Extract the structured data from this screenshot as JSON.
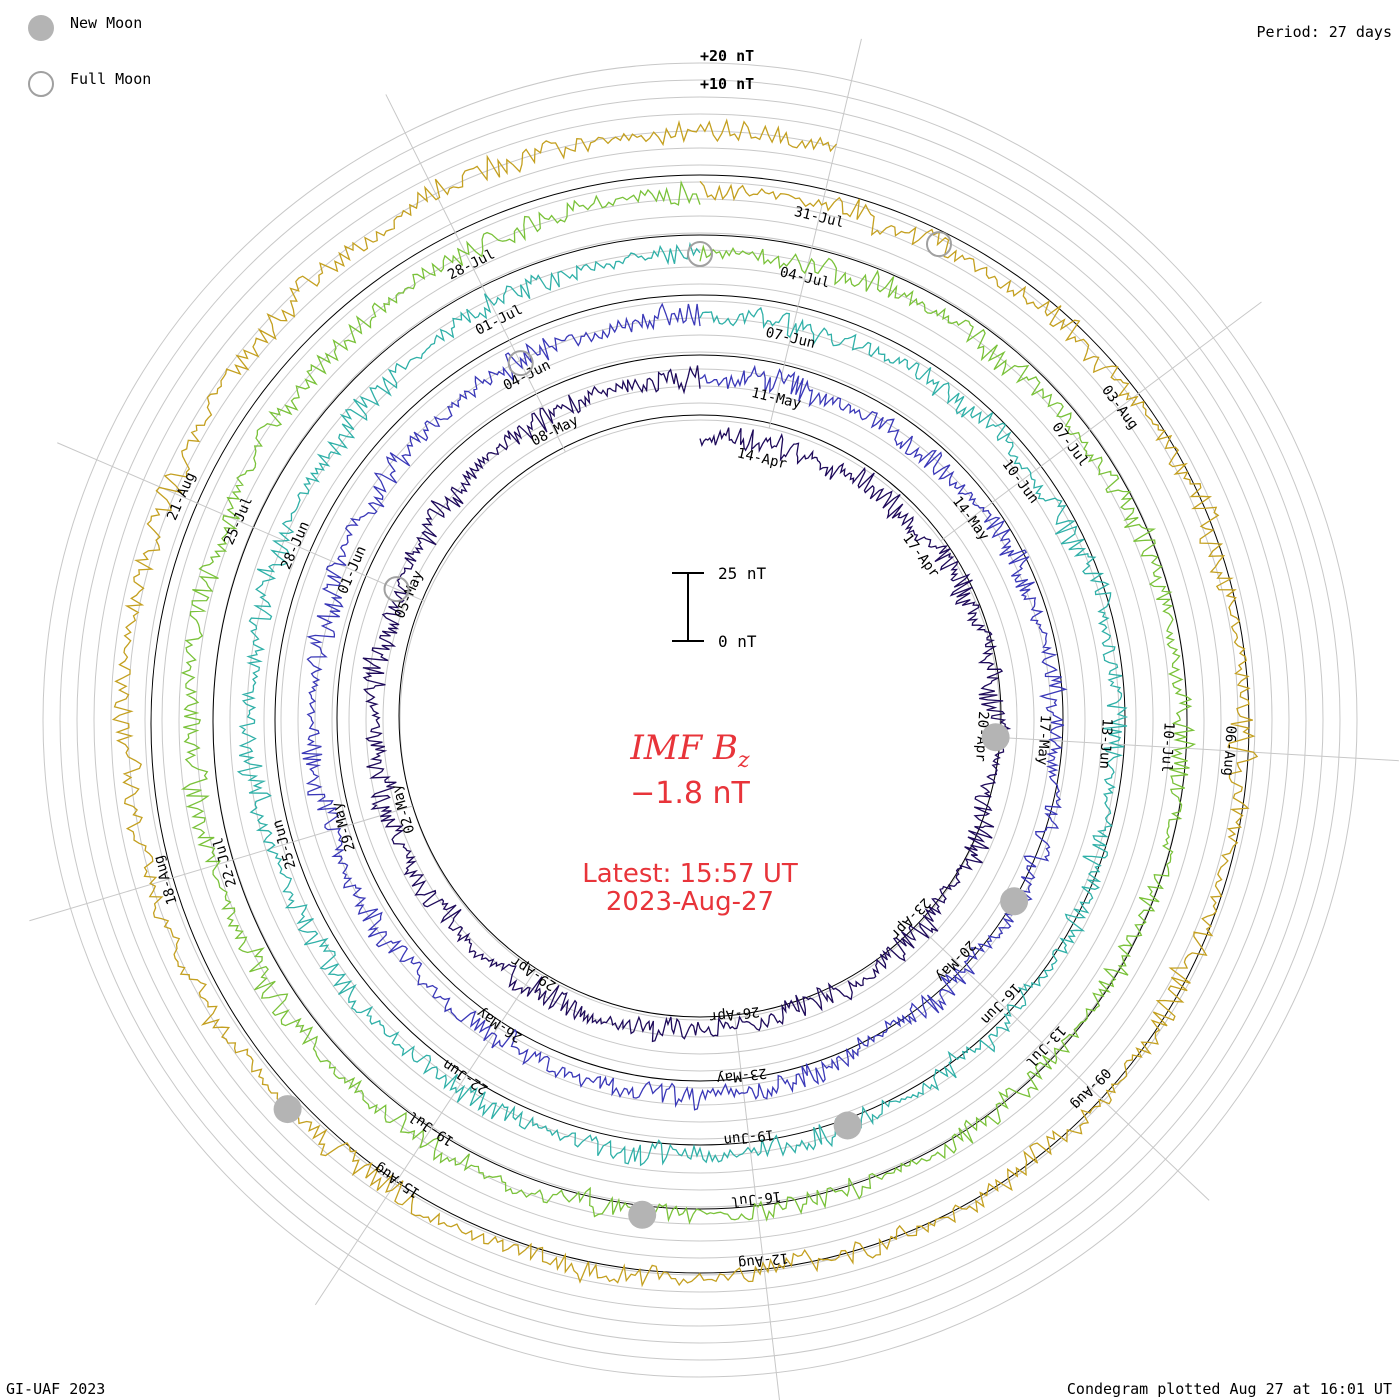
{
  "legend": {
    "new_moon": "New Moon",
    "full_moon": "Full Moon"
  },
  "header": {
    "period": "Period: 27 days"
  },
  "footer": {
    "credit": "GI-UAF 2023",
    "plotted": "Condegram plotted Aug 27 at 16:01 UT"
  },
  "scale": {
    "ring_top": "+20 nT",
    "ring_mid": "+10 nT",
    "bar_top": "25 nT",
    "bar_bottom": "0 nT"
  },
  "center": {
    "title": "IMF B",
    "title_sub": "z",
    "value": "−1.8 nT",
    "latest_line1": "Latest: 15:57 UT",
    "latest_line2": "2023-Aug-27"
  },
  "chart_data": {
    "type": "line",
    "subtype": "spiral condegram",
    "period_days": 27,
    "quantity": "IMF Bz",
    "units": "nT",
    "latest_value": -1.8,
    "latest_time": "2023-08-27 15:57 UT",
    "scale_bar": [
      0,
      25
    ],
    "ring_labels": [
      "+20 nT",
      "+10 nT"
    ],
    "date_labels": [
      "14-Apr",
      "17-Apr",
      "20-Apr",
      "23-Apr",
      "26-Apr",
      "29-Apr",
      "02-May",
      "05-May",
      "08-May",
      "11-May",
      "14-May",
      "17-May",
      "20-May",
      "23-May",
      "26-May",
      "29-May",
      "01-Jun",
      "04-Jun",
      "07-Jun",
      "10-Jun",
      "13-Jun",
      "16-Jun",
      "19-Jun",
      "22-Jun",
      "25-Jun",
      "28-Jun",
      "01-Jul",
      "04-Jul",
      "07-Jul",
      "10-Jul",
      "13-Jul",
      "16-Jul",
      "19-Jul",
      "22-Jul",
      "25-Jul",
      "28-Jul",
      "31-Jul",
      "03-Aug",
      "06-Aug",
      "09-Aug",
      "12-Aug",
      "15-Aug",
      "18-Aug",
      "21-Aug"
    ],
    "series": [
      {
        "start": "2023-04-13",
        "end": "2023-05-10",
        "color": "#1e0a5a"
      },
      {
        "start": "2023-05-10",
        "end": "2023-06-06",
        "color": "#3a38b8"
      },
      {
        "start": "2023-06-06",
        "end": "2023-07-03",
        "color": "#30b0a8"
      },
      {
        "start": "2023-07-03",
        "end": "2023-07-30",
        "color": "#7ac23a"
      },
      {
        "start": "2023-07-30",
        "end": "2023-08-27",
        "color": "#c4a020"
      }
    ],
    "new_moons": [
      "2023-04-20",
      "2023-05-19",
      "2023-06-18",
      "2023-07-17",
      "2023-08-16"
    ],
    "full_moons": [
      "2023-05-05",
      "2023-06-04",
      "2023-07-03",
      "2023-08-01"
    ]
  }
}
